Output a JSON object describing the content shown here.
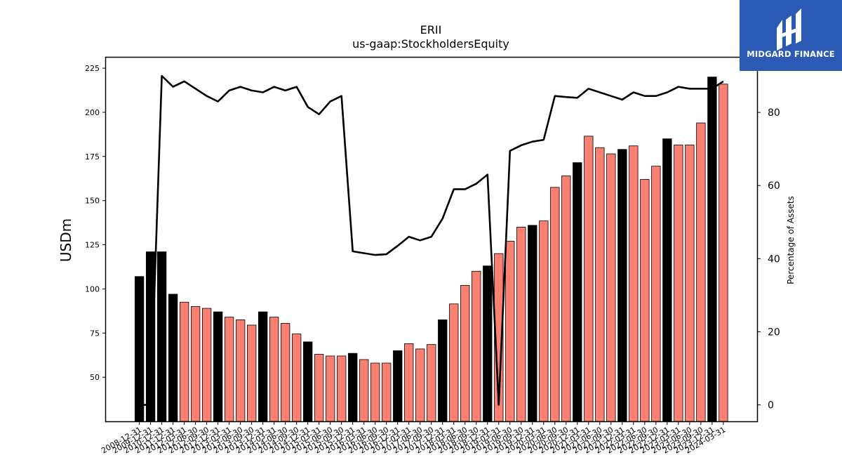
{
  "chart_data": {
    "type": "bar",
    "title": "ERII",
    "subtitle": "us-gaap:StockholdersEquity",
    "ylabel": "USDm",
    "y2label": "Percentage of Assets",
    "ylim": [
      25,
      231
    ],
    "y2lim": [
      -4.5,
      95
    ],
    "yticks": [
      50,
      75,
      100,
      125,
      150,
      175,
      200,
      225
    ],
    "y2ticks": [
      0,
      20,
      40,
      60,
      80
    ],
    "categories": [
      "2008-12-31",
      "2009-12-31",
      "2010-12-31",
      "2011-12-31",
      "2012-03-31",
      "2012-06-30",
      "2012-09-30",
      "2012-12-31",
      "2013-03-31",
      "2013-06-30",
      "2013-09-30",
      "2013-12-31",
      "2014-03-31",
      "2014-06-30",
      "2014-09-30",
      "2014-12-31",
      "2015-03-31",
      "2015-06-30",
      "2015-09-30",
      "2015-12-31",
      "2016-03-31",
      "2016-06-30",
      "2016-09-30",
      "2016-12-31",
      "2017-03-31",
      "2017-06-30",
      "2017-09-30",
      "2017-12-31",
      "2018-03-31",
      "2018-06-30",
      "2018-09-30",
      "2018-12-31",
      "2019-03-31",
      "2019-06-30",
      "2019-09-30",
      "2019-12-31",
      "2020-03-31",
      "2020-06-30",
      "2020-09-30",
      "2020-12-31",
      "2021-03-31",
      "2021-06-30",
      "2021-09-30",
      "2021-12-31",
      "2022-03-31",
      "2022-06-30",
      "2022-09-30",
      "2022-12-31",
      "2023-03-31",
      "2023-06-30",
      "2023-09-30",
      "2023-12-31",
      "2024-03-31"
    ],
    "series": [
      {
        "kind": "bar",
        "values": [
          107,
          121,
          121,
          97,
          92.5,
          90,
          89,
          87,
          84,
          82.5,
          79.5,
          87,
          84,
          80.5,
          74.5,
          70,
          63,
          62,
          62,
          63.5,
          60,
          58,
          58,
          65,
          69,
          66,
          68.5,
          82.5,
          91.5,
          102,
          110,
          113,
          120,
          127,
          135,
          136,
          138.5,
          157.5,
          164,
          171.5,
          186.5,
          180,
          176.5,
          179,
          181,
          162,
          169.5,
          185,
          181.5,
          181.5,
          194,
          220,
          216
        ],
        "annual": [
          true,
          true,
          true,
          true,
          false,
          false,
          false,
          true,
          false,
          false,
          false,
          true,
          false,
          false,
          false,
          true,
          false,
          false,
          false,
          true,
          false,
          false,
          false,
          true,
          false,
          false,
          false,
          true,
          false,
          false,
          false,
          true,
          false,
          false,
          false,
          true,
          false,
          false,
          false,
          true,
          false,
          false,
          false,
          true,
          false,
          false,
          false,
          true,
          false,
          false,
          false,
          true,
          false
        ]
      },
      {
        "kind": "line",
        "axis": "right",
        "values": [
          0,
          0,
          90,
          87,
          88.5,
          86.5,
          84.5,
          83,
          86,
          87,
          86,
          85.5,
          87,
          86,
          87,
          81.5,
          79.5,
          83,
          84.5,
          42,
          41.5,
          41,
          41.2,
          43.5,
          46,
          45,
          46,
          51,
          59,
          59,
          60.5,
          63,
          0,
          69.5,
          71,
          72,
          72.5,
          84.5,
          84.2,
          84,
          86.5,
          85.5,
          84.5,
          83.5,
          85.5,
          84.5,
          84.5,
          85.5,
          87,
          86.5,
          86.5,
          86.5,
          88.5
        ]
      }
    ],
    "colors": {
      "annual_bar": "#000000",
      "quarter_bar": "#fa8072",
      "bar_edge": "#000000",
      "line": "#000000"
    },
    "grid": false
  },
  "logo": {
    "text": "MIDGARD FINANCE",
    "bg": "#2b5ab5"
  }
}
